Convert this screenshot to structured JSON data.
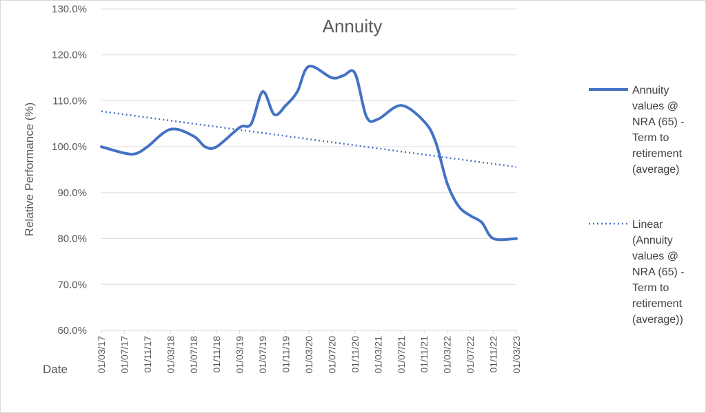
{
  "chart_data": {
    "type": "line",
    "title": "Annuity",
    "xlabel": "Date",
    "ylabel": "Relative Performance (%)",
    "ylim": [
      60,
      130
    ],
    "y_ticks": [
      "60.0%",
      "70.0%",
      "80.0%",
      "90.0%",
      "100.0%",
      "110.0%",
      "120.0%",
      "130.0%"
    ],
    "x_ticks": [
      "01/03/17",
      "01/07/17",
      "01/11/17",
      "01/03/18",
      "01/07/18",
      "01/11/18",
      "01/03/19",
      "01/07/19",
      "01/11/19",
      "01/03/20",
      "01/07/20",
      "01/11/20",
      "01/03/21",
      "01/07/21",
      "01/11/21",
      "01/03/22",
      "01/07/22",
      "01/11/22",
      "01/03/23"
    ],
    "grid": true,
    "legend_position": "right",
    "colors": {
      "series": "#4472c4",
      "grid": "#d9d9d9",
      "text": "#595959"
    },
    "series": [
      {
        "name": "Annuity values @ NRA (65) - Term to retirement (average)",
        "legend_lines": [
          "Annuity",
          "values @",
          "NRA (65) -",
          "Term to",
          "retirement",
          "(average)"
        ],
        "style": "solid",
        "x": [
          "01/03/17",
          "01/07/17",
          "01/09/17",
          "01/11/17",
          "01/03/18",
          "01/07/18",
          "01/09/18",
          "01/11/18",
          "01/03/19",
          "01/05/19",
          "01/07/19",
          "01/09/19",
          "01/11/19",
          "01/01/20",
          "01/03/20",
          "01/07/20",
          "01/09/20",
          "01/11/20",
          "01/01/21",
          "01/03/21",
          "01/07/21",
          "01/11/21",
          "01/01/22",
          "01/03/22",
          "01/05/22",
          "01/07/22",
          "01/09/22",
          "01/11/22",
          "01/03/23"
        ],
        "values": [
          100.0,
          98.6,
          98.5,
          100.0,
          103.8,
          102.3,
          100.0,
          100.0,
          104.2,
          105.0,
          112.0,
          107.0,
          109.0,
          112.0,
          117.5,
          115.0,
          115.5,
          116.0,
          106.5,
          106.0,
          109.0,
          105.5,
          101.0,
          92.0,
          87.0,
          85.0,
          83.5,
          80.0,
          80.0
        ]
      },
      {
        "name": "Linear (Annuity values @ NRA (65) - Term to retirement (average))",
        "legend_lines": [
          "Linear",
          "(Annuity",
          "values @",
          "NRA (65) -",
          "Term to",
          "retirement",
          "(average))"
        ],
        "style": "dotted",
        "x": [
          "01/03/17",
          "01/03/23"
        ],
        "values": [
          107.7,
          95.6
        ]
      }
    ]
  }
}
